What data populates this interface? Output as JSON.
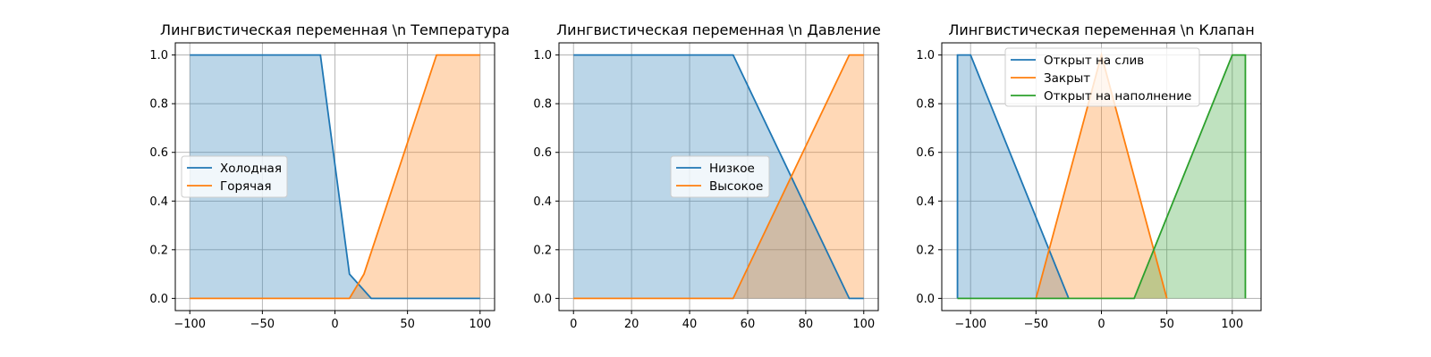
{
  "chart_data": [
    {
      "type": "area",
      "title": "Лингвистическая переменная \\n Температура",
      "xlabel": "",
      "ylabel": "",
      "xlim": [
        -110,
        110
      ],
      "ylim": [
        -0.05,
        1.05
      ],
      "xticks": [
        -100,
        -50,
        0,
        50,
        100
      ],
      "xtick_labels": [
        "−100",
        "−50",
        "0",
        "50",
        "100"
      ],
      "yticks": [
        0.0,
        0.2,
        0.4,
        0.6,
        0.8,
        1.0
      ],
      "ytick_labels": [
        "0.0",
        "0.2",
        "0.4",
        "0.6",
        "0.8",
        "1.0"
      ],
      "grid": true,
      "legend_position": "center-left",
      "series": [
        {
          "name": "Холодная",
          "color": "#1f77b4",
          "x": [
            -100,
            -10,
            10,
            25,
            100
          ],
          "y": [
            1,
            1,
            0.1,
            0,
            0
          ]
        },
        {
          "name": "Горячая",
          "color": "#ff7f0e",
          "x": [
            -100,
            10,
            20,
            70,
            100
          ],
          "y": [
            0,
            0,
            0.1,
            1,
            1
          ]
        }
      ]
    },
    {
      "type": "area",
      "title": "Лингвистическая переменная \\n Давление",
      "xlabel": "",
      "ylabel": "",
      "xlim": [
        -5,
        105
      ],
      "ylim": [
        -0.05,
        1.05
      ],
      "xticks": [
        0,
        20,
        40,
        60,
        80,
        100
      ],
      "xtick_labels": [
        "0",
        "20",
        "40",
        "60",
        "80",
        "100"
      ],
      "yticks": [
        0.0,
        0.2,
        0.4,
        0.6,
        0.8,
        1.0
      ],
      "ytick_labels": [
        "0.0",
        "0.2",
        "0.4",
        "0.6",
        "0.8",
        "1.0"
      ],
      "grid": true,
      "legend_position": "center",
      "series": [
        {
          "name": "Низкое",
          "color": "#1f77b4",
          "x": [
            0,
            55,
            95,
            100
          ],
          "y": [
            1,
            1,
            0,
            0
          ]
        },
        {
          "name": "Высокое",
          "color": "#ff7f0e",
          "x": [
            0,
            55,
            95,
            100
          ],
          "y": [
            0,
            0,
            1,
            1
          ]
        }
      ]
    },
    {
      "type": "area",
      "title": "Лингвистическая переменная \\n Клапан",
      "xlabel": "",
      "ylabel": "",
      "xlim": [
        -122,
        122
      ],
      "ylim": [
        -0.05,
        1.05
      ],
      "xticks": [
        -100,
        -50,
        0,
        50,
        100
      ],
      "xtick_labels": [
        "−100",
        "−50",
        "0",
        "50",
        "100"
      ],
      "yticks": [
        0.0,
        0.2,
        0.4,
        0.6,
        0.8,
        1.0
      ],
      "ytick_labels": [
        "0.0",
        "0.2",
        "0.4",
        "0.6",
        "0.8",
        "1.0"
      ],
      "grid": true,
      "legend_position": "upper-center",
      "series": [
        {
          "name": "Открыт на слив",
          "color": "#1f77b4",
          "x": [
            -110,
            -110,
            -100,
            -25
          ],
          "y": [
            0,
            1,
            1,
            0
          ]
        },
        {
          "name": "Закрыт",
          "color": "#ff7f0e",
          "x": [
            -50,
            0,
            50
          ],
          "y": [
            0,
            1,
            0
          ]
        },
        {
          "name": "Открыт на наполнение",
          "color": "#2ca02c",
          "x": [
            -110,
            25,
            100,
            110,
            110
          ],
          "y": [
            0,
            0,
            1,
            1,
            0
          ]
        }
      ]
    }
  ]
}
